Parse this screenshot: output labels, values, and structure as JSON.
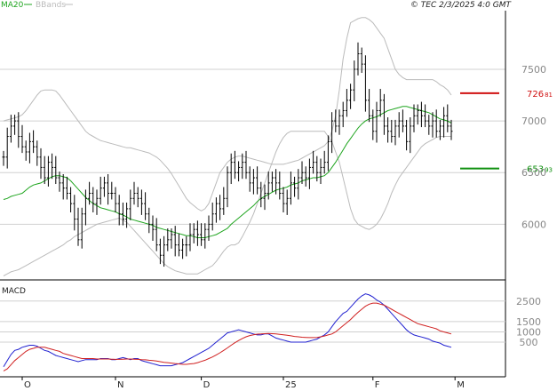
{
  "copyright": "© TEC 2/3/2025 4:0 GMT",
  "colors": {
    "ma20": "#1fa51f",
    "bbands": "#bbbbbb",
    "price_bars": "#000000",
    "macd_line": "#2020d0",
    "signal_line": "#d02020",
    "resistance": "#d01010",
    "support": "#109010"
  },
  "chart_data": [
    {
      "type": "line",
      "title": "",
      "legend": [
        {
          "name": "MA20",
          "color": "#1fa51f"
        },
        {
          "name": "BBands",
          "color": "#bbbbbb"
        }
      ],
      "y_ticks": [
        {
          "value": 6000,
          "label": "6000"
        },
        {
          "value": 6500,
          "label": "6500"
        },
        {
          "value": 7000,
          "label": "7000"
        },
        {
          "value": 7500,
          "label": "7500"
        }
      ],
      "ylim": [
        5470,
        8050
      ],
      "x_ticks": [
        {
          "index": 5,
          "label": "O"
        },
        {
          "index": 30,
          "label": "N"
        },
        {
          "index": 53,
          "label": "D"
        },
        {
          "index": 75,
          "label": "25"
        },
        {
          "index": 99,
          "label": "F"
        },
        {
          "index": 121,
          "label": "M"
        }
      ],
      "levels": [
        {
          "name": "resistance",
          "value": 7268.1,
          "label_int": "726",
          "label_dec": "81"
        },
        {
          "name": "support",
          "value": 6539.3,
          "label_int": "653",
          "label_dec": "93"
        }
      ],
      "close": [
        6650,
        6850,
        6950,
        7000,
        6850,
        6750,
        6700,
        6800,
        6750,
        6650,
        6550,
        6450,
        6600,
        6550,
        6450,
        6400,
        6350,
        6300,
        6200,
        6050,
        5850,
        6100,
        6250,
        6300,
        6200,
        6250,
        6350,
        6400,
        6300,
        6300,
        6200,
        6100,
        6050,
        6150,
        6250,
        6300,
        6250,
        6200,
        6100,
        6000,
        5950,
        5800,
        5700,
        5800,
        5850,
        5900,
        5800,
        5750,
        5800,
        5800,
        5900,
        5950,
        5900,
        5850,
        5950,
        6000,
        6100,
        6200,
        6150,
        6250,
        6500,
        6600,
        6500,
        6550,
        6600,
        6500,
        6400,
        6450,
        6350,
        6250,
        6300,
        6400,
        6450,
        6400,
        6300,
        6200,
        6250,
        6400,
        6350,
        6450,
        6500,
        6450,
        6550,
        6600,
        6500,
        6550,
        6600,
        6800,
        7000,
        6950,
        7050,
        7100,
        7200,
        7300,
        7500,
        7650,
        7550,
        7200,
        7050,
        6900,
        7100,
        7200,
        6950,
        6900,
        6850,
        6950,
        7000,
        6950,
        6800,
        6950,
        7050,
        7100,
        7050,
        7000,
        6950,
        7000,
        6900,
        6950,
        7050,
        6950,
        6900
      ],
      "ma20": [
        6240,
        6250,
        6270,
        6280,
        6290,
        6300,
        6330,
        6360,
        6380,
        6390,
        6400,
        6420,
        6440,
        6460,
        6470,
        6470,
        6460,
        6450,
        6420,
        6380,
        6340,
        6300,
        6260,
        6230,
        6200,
        6180,
        6160,
        6150,
        6140,
        6130,
        6120,
        6100,
        6090,
        6070,
        6050,
        6040,
        6030,
        6020,
        6010,
        6000,
        5990,
        5970,
        5960,
        5950,
        5940,
        5930,
        5920,
        5910,
        5900,
        5890,
        5890,
        5880,
        5870,
        5870,
        5870,
        5880,
        5890,
        5900,
        5920,
        5940,
        5960,
        6000,
        6030,
        6060,
        6090,
        6120,
        6150,
        6180,
        6220,
        6250,
        6270,
        6290,
        6310,
        6330,
        6340,
        6350,
        6360,
        6380,
        6390,
        6400,
        6420,
        6430,
        6440,
        6450,
        6450,
        6460,
        6470,
        6500,
        6550,
        6600,
        6660,
        6720,
        6780,
        6830,
        6880,
        6930,
        6970,
        7000,
        7020,
        7030,
        7040,
        7060,
        7080,
        7100,
        7110,
        7120,
        7130,
        7140,
        7140,
        7130,
        7120,
        7110,
        7100,
        7090,
        7080,
        7060,
        7040,
        7020,
        7010,
        7000,
        6980
      ],
      "bb_upper": [
        7000,
        7010,
        7020,
        7030,
        7040,
        7060,
        7100,
        7150,
        7200,
        7250,
        7290,
        7300,
        7300,
        7300,
        7290,
        7250,
        7200,
        7150,
        7100,
        7050,
        7000,
        6950,
        6900,
        6870,
        6850,
        6830,
        6810,
        6800,
        6790,
        6780,
        6770,
        6760,
        6750,
        6740,
        6740,
        6730,
        6720,
        6710,
        6700,
        6690,
        6670,
        6650,
        6620,
        6580,
        6540,
        6490,
        6430,
        6370,
        6310,
        6250,
        6210,
        6180,
        6150,
        6130,
        6150,
        6200,
        6300,
        6400,
        6500,
        6550,
        6600,
        6630,
        6650,
        6660,
        6660,
        6650,
        6640,
        6630,
        6620,
        6610,
        6600,
        6590,
        6580,
        6580,
        6580,
        6580,
        6590,
        6600,
        6610,
        6620,
        6640,
        6660,
        6680,
        6700,
        6720,
        6740,
        6760,
        6800,
        6900,
        7050,
        7300,
        7600,
        7800,
        7950,
        7970,
        7990,
        8000,
        8000,
        7980,
        7950,
        7900,
        7850,
        7800,
        7700,
        7600,
        7500,
        7450,
        7420,
        7400,
        7400,
        7400,
        7400,
        7400,
        7400,
        7400,
        7400,
        7380,
        7350,
        7330,
        7300,
        7250
      ],
      "bb_lower": [
        5500,
        5520,
        5540,
        5550,
        5560,
        5580,
        5600,
        5620,
        5640,
        5660,
        5680,
        5700,
        5720,
        5740,
        5760,
        5780,
        5800,
        5830,
        5850,
        5880,
        5900,
        5920,
        5940,
        5960,
        5980,
        6000,
        6010,
        6020,
        6030,
        6040,
        6050,
        6060,
        6040,
        6020,
        5980,
        5940,
        5900,
        5860,
        5820,
        5780,
        5740,
        5700,
        5660,
        5620,
        5590,
        5570,
        5550,
        5540,
        5530,
        5520,
        5520,
        5520,
        5520,
        5540,
        5560,
        5580,
        5600,
        5640,
        5690,
        5740,
        5780,
        5800,
        5800,
        5820,
        5880,
        5950,
        6020,
        6100,
        6200,
        6300,
        6400,
        6500,
        6600,
        6700,
        6780,
        6840,
        6880,
        6900,
        6900,
        6900,
        6900,
        6900,
        6900,
        6900,
        6900,
        6900,
        6900,
        6850,
        6800,
        6700,
        6600,
        6450,
        6300,
        6150,
        6050,
        6000,
        5980,
        5960,
        5950,
        5970,
        6000,
        6050,
        6120,
        6200,
        6300,
        6380,
        6450,
        6500,
        6550,
        6600,
        6650,
        6700,
        6750,
        6780,
        6800,
        6820,
        6840,
        6850,
        6850,
        6850,
        6850
      ]
    },
    {
      "type": "line",
      "title": "MACD",
      "y_ticks": [
        {
          "value": 500,
          "label": "500"
        },
        {
          "value": 1000,
          "label": "1000"
        },
        {
          "value": 1500,
          "label": "1500"
        },
        {
          "value": 2500,
          "label": "2500"
        }
      ],
      "ylim": [
        -1100,
        3400
      ],
      "series": [
        {
          "name": "MACD",
          "values": [
            -700,
            -400,
            -100,
            100,
            150,
            250,
            300,
            350,
            350,
            300,
            200,
            100,
            50,
            -50,
            -150,
            -200,
            -250,
            -300,
            -350,
            -400,
            -450,
            -400,
            -350,
            -350,
            -350,
            -350,
            -300,
            -300,
            -300,
            -350,
            -350,
            -300,
            -250,
            -300,
            -350,
            -300,
            -300,
            -400,
            -450,
            -500,
            -550,
            -600,
            -650,
            -650,
            -650,
            -650,
            -600,
            -550,
            -500,
            -400,
            -300,
            -200,
            -100,
            0,
            100,
            200,
            350,
            500,
            650,
            800,
            950,
            1000,
            1050,
            1100,
            1050,
            1000,
            950,
            900,
            850,
            850,
            900,
            900,
            800,
            700,
            650,
            600,
            550,
            500,
            500,
            500,
            500,
            500,
            550,
            600,
            650,
            750,
            850,
            1000,
            1250,
            1500,
            1700,
            1900,
            2000,
            2200,
            2400,
            2600,
            2750,
            2850,
            2800,
            2700,
            2550,
            2450,
            2300,
            2100,
            1900,
            1700,
            1500,
            1300,
            1100,
            950,
            850,
            800,
            750,
            700,
            650,
            550,
            500,
            450,
            350,
            300,
            250
          ]
        },
        {
          "name": "Signal",
          "values": [
            -900,
            -800,
            -600,
            -400,
            -250,
            -100,
            50,
            150,
            200,
            250,
            250,
            250,
            200,
            150,
            100,
            50,
            -50,
            -100,
            -150,
            -200,
            -250,
            -300,
            -300,
            -300,
            -300,
            -320,
            -320,
            -320,
            -320,
            -330,
            -340,
            -340,
            -330,
            -320,
            -320,
            -330,
            -340,
            -350,
            -360,
            -380,
            -400,
            -420,
            -450,
            -480,
            -500,
            -520,
            -540,
            -560,
            -580,
            -580,
            -560,
            -540,
            -500,
            -440,
            -380,
            -300,
            -220,
            -120,
            -20,
            100,
            220,
            350,
            470,
            580,
            680,
            760,
            820,
            860,
            890,
            900,
            910,
            920,
            910,
            900,
            880,
            860,
            840,
            810,
            780,
            760,
            740,
            730,
            720,
            720,
            730,
            760,
            800,
            850,
            900,
            1000,
            1150,
            1300,
            1450,
            1600,
            1780,
            1950,
            2100,
            2250,
            2350,
            2400,
            2400,
            2350,
            2300,
            2200,
            2100,
            2000,
            1900,
            1800,
            1700,
            1600,
            1500,
            1400,
            1350,
            1300,
            1250,
            1200,
            1150,
            1050,
            1000,
            950,
            900
          ]
        }
      ]
    }
  ]
}
